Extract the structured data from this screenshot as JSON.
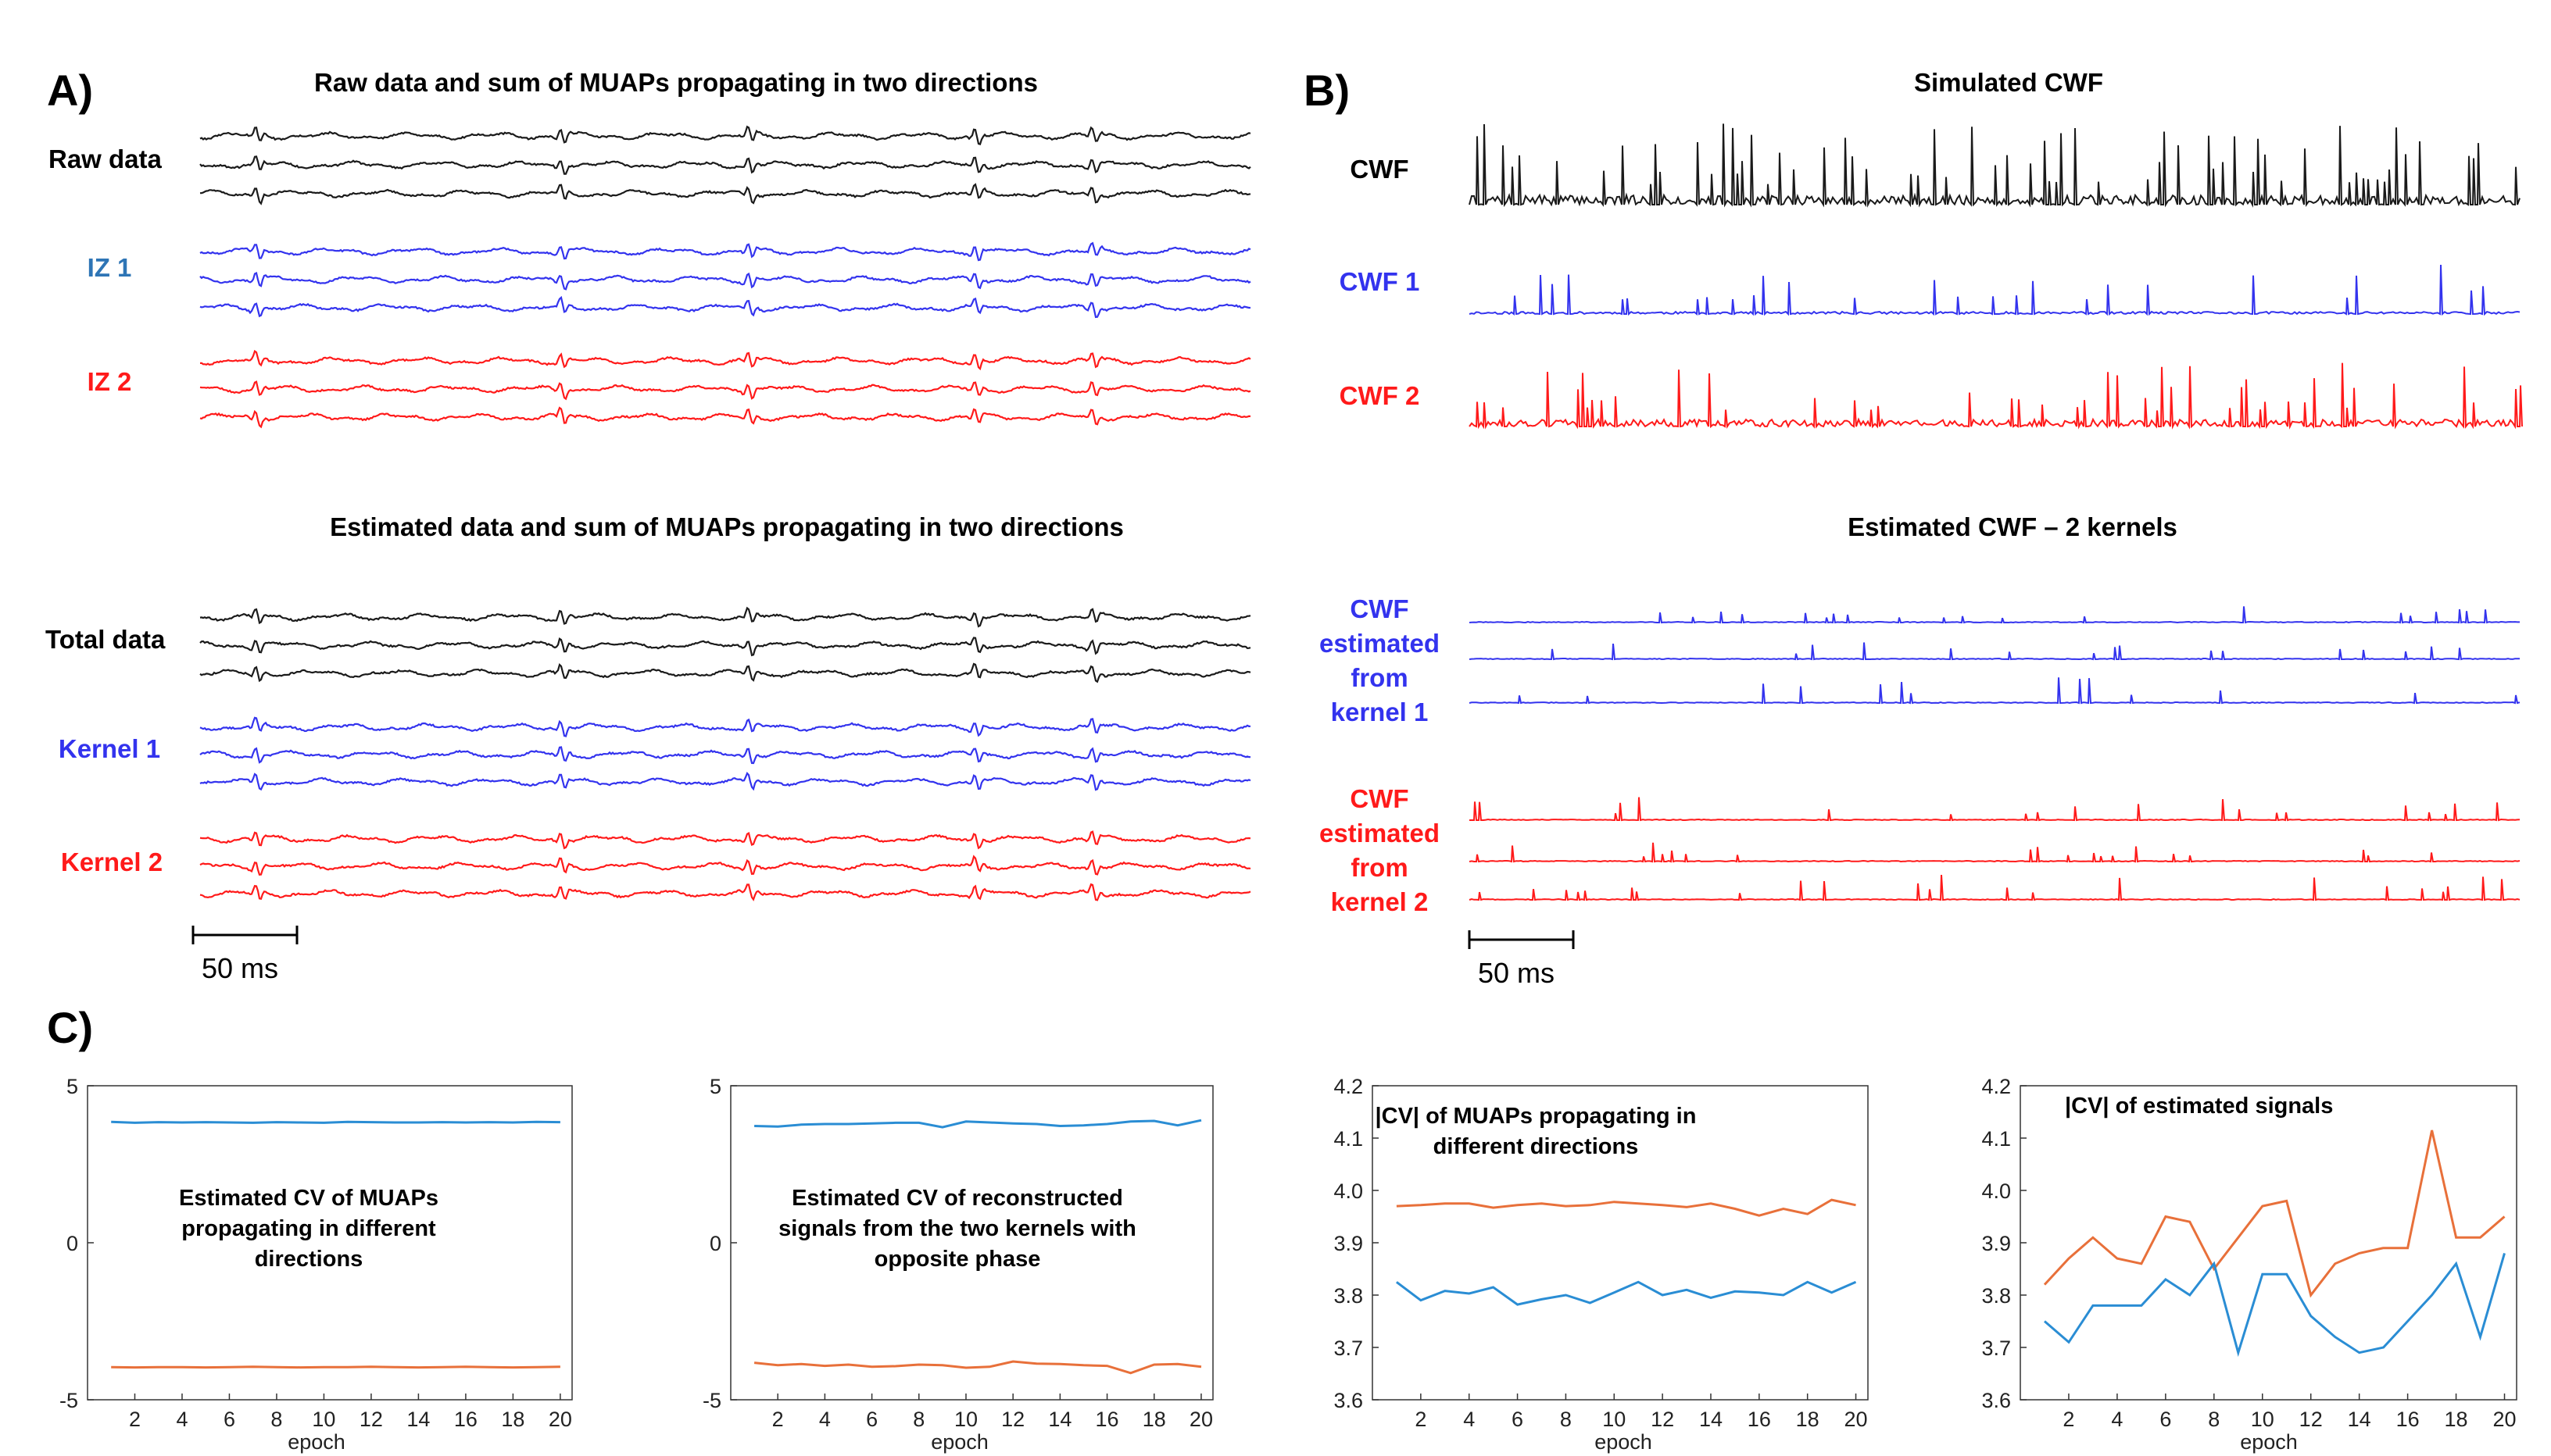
{
  "colors": {
    "black": "#1a1a1a",
    "blue": "#3333ee",
    "red": "#ff1a1a",
    "iz1_label": "#2e75b6",
    "line_blue": "#2a8dd4",
    "line_orange": "#e8703a"
  },
  "panel_a": {
    "label": "A)",
    "top_title": "Raw data and sum of MUAPs propagating in two directions",
    "bottom_title": "Estimated data and sum of MUAPs propagating in two directions",
    "rows_top": [
      "Raw data",
      "IZ 1",
      "IZ 2"
    ],
    "rows_bottom": [
      "Total data",
      "Kernel 1",
      "Kernel 2"
    ],
    "scale_bar": "50 ms"
  },
  "panel_b": {
    "label": "B)",
    "top_title": "Simulated CWF",
    "bottom_title": "Estimated CWF – 2 kernels",
    "rows_top": [
      "CWF",
      "CWF 1",
      "CWF 2"
    ],
    "kernel1_label": [
      "CWF",
      "estimated",
      "from",
      "kernel 1"
    ],
    "kernel2_label": [
      "CWF",
      "estimated",
      "from",
      "kernel 2"
    ],
    "scale_bar": "50 ms"
  },
  "panel_c": {
    "label": "C)"
  },
  "chart_data": [
    {
      "type": "line",
      "annotation": [
        "Estimated CV of MUAPs",
        "propagating in different",
        "directions"
      ],
      "xlabel": "epoch",
      "xlim": [
        0,
        20.5
      ],
      "ylim": [
        -5,
        5
      ],
      "xticks": [
        2,
        4,
        6,
        8,
        10,
        12,
        14,
        16,
        18,
        20
      ],
      "yticks": [
        -5,
        0,
        5
      ],
      "x": [
        1,
        2,
        3,
        4,
        5,
        6,
        7,
        8,
        9,
        10,
        11,
        12,
        13,
        14,
        15,
        16,
        17,
        18,
        19,
        20
      ],
      "series": [
        {
          "name": "positive",
          "color": "blue",
          "values": [
            3.85,
            3.82,
            3.84,
            3.83,
            3.84,
            3.83,
            3.82,
            3.84,
            3.83,
            3.82,
            3.85,
            3.84,
            3.83,
            3.83,
            3.84,
            3.83,
            3.84,
            3.83,
            3.85,
            3.84
          ]
        },
        {
          "name": "negative",
          "color": "orange",
          "values": [
            -3.96,
            -3.97,
            -3.96,
            -3.96,
            -3.97,
            -3.96,
            -3.95,
            -3.96,
            -3.97,
            -3.96,
            -3.96,
            -3.95,
            -3.96,
            -3.97,
            -3.96,
            -3.95,
            -3.96,
            -3.97,
            -3.96,
            -3.95
          ]
        }
      ]
    },
    {
      "type": "line",
      "annotation": [
        "Estimated CV of reconstructed",
        "signals from the two kernels with",
        "opposite phase"
      ],
      "xlabel": "epoch",
      "xlim": [
        0,
        20.5
      ],
      "ylim": [
        -5,
        5
      ],
      "xticks": [
        2,
        4,
        6,
        8,
        10,
        12,
        14,
        16,
        18,
        20
      ],
      "yticks": [
        -5,
        0,
        5
      ],
      "x": [
        1,
        2,
        3,
        4,
        5,
        6,
        7,
        8,
        9,
        10,
        11,
        12,
        13,
        14,
        15,
        16,
        17,
        18,
        19,
        20
      ],
      "series": [
        {
          "name": "positive",
          "color": "blue",
          "values": [
            3.72,
            3.7,
            3.76,
            3.78,
            3.78,
            3.8,
            3.82,
            3.82,
            3.68,
            3.86,
            3.83,
            3.8,
            3.78,
            3.72,
            3.74,
            3.78,
            3.86,
            3.88,
            3.74,
            3.9
          ]
        },
        {
          "name": "negative",
          "color": "orange",
          "values": [
            -3.82,
            -3.9,
            -3.86,
            -3.92,
            -3.88,
            -3.95,
            -3.93,
            -3.88,
            -3.9,
            -3.98,
            -3.95,
            -3.78,
            -3.85,
            -3.86,
            -3.9,
            -3.92,
            -4.15,
            -3.88,
            -3.86,
            -3.95
          ]
        }
      ]
    },
    {
      "type": "line",
      "annotation": [
        "|CV| of MUAPs propagating in",
        "different directions"
      ],
      "xlabel": "epoch",
      "xlim": [
        0,
        20.5
      ],
      "ylim": [
        3.6,
        4.2
      ],
      "xticks": [
        2,
        4,
        6,
        8,
        10,
        12,
        14,
        16,
        18,
        20
      ],
      "yticks": [
        3.6,
        3.7,
        3.8,
        3.9,
        4.0,
        4.1,
        4.2
      ],
      "ytick_labels": [
        "3.6",
        "3.7",
        "3.8",
        "3.9",
        "4.0",
        "4.1",
        "4.2"
      ],
      "x": [
        1,
        2,
        3,
        4,
        5,
        6,
        7,
        8,
        9,
        10,
        11,
        12,
        13,
        14,
        15,
        16,
        17,
        18,
        19,
        20
      ],
      "series": [
        {
          "name": "orange",
          "color": "orange",
          "values": [
            3.97,
            3.972,
            3.975,
            3.975,
            3.967,
            3.972,
            3.975,
            3.97,
            3.972,
            3.978,
            3.975,
            3.972,
            3.968,
            3.975,
            3.965,
            3.952,
            3.965,
            3.955,
            3.982,
            3.972
          ]
        },
        {
          "name": "blue",
          "color": "blue",
          "values": [
            3.825,
            3.79,
            3.808,
            3.803,
            3.815,
            3.782,
            3.792,
            3.8,
            3.785,
            3.805,
            3.825,
            3.8,
            3.81,
            3.795,
            3.807,
            3.805,
            3.8,
            3.825,
            3.805,
            3.825
          ]
        }
      ]
    },
    {
      "type": "line",
      "annotation": [
        "|CV| of estimated signals"
      ],
      "xlabel": "epoch",
      "xlim": [
        0,
        20.5
      ],
      "ylim": [
        3.6,
        4.2
      ],
      "xticks": [
        2,
        4,
        6,
        8,
        10,
        12,
        14,
        16,
        18,
        20
      ],
      "yticks": [
        3.6,
        3.7,
        3.8,
        3.9,
        4.0,
        4.1,
        4.2
      ],
      "ytick_labels": [
        "3.6",
        "3.7",
        "3.8",
        "3.9",
        "4.0",
        "4.1",
        "4.2"
      ],
      "x": [
        1,
        2,
        3,
        4,
        5,
        6,
        7,
        8,
        9,
        10,
        11,
        12,
        13,
        14,
        15,
        16,
        17,
        18,
        19,
        20
      ],
      "series": [
        {
          "name": "orange",
          "color": "orange",
          "values": [
            3.82,
            3.87,
            3.91,
            3.87,
            3.86,
            3.95,
            3.94,
            3.85,
            3.91,
            3.97,
            3.98,
            3.8,
            3.86,
            3.88,
            3.89,
            3.89,
            4.115,
            3.91,
            3.91,
            3.95
          ]
        },
        {
          "name": "blue",
          "color": "blue",
          "values": [
            3.75,
            3.71,
            3.78,
            3.78,
            3.78,
            3.83,
            3.8,
            3.86,
            3.69,
            3.84,
            3.84,
            3.76,
            3.72,
            3.69,
            3.7,
            3.75,
            3.8,
            3.86,
            3.72,
            3.88
          ]
        }
      ]
    }
  ]
}
